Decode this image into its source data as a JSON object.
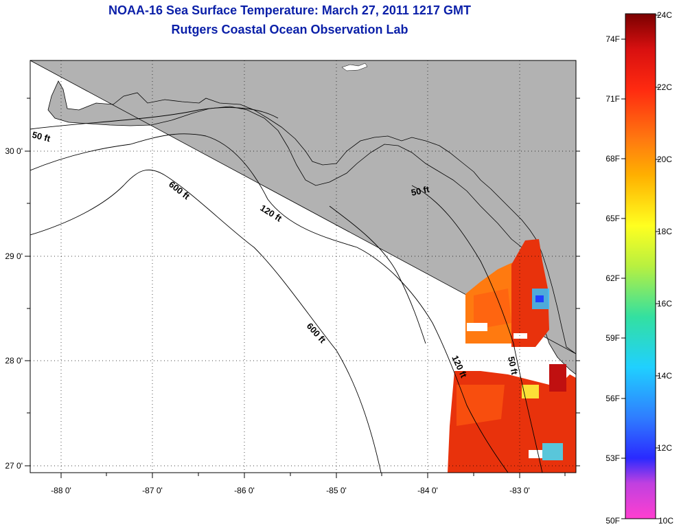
{
  "header": {
    "title_line1": "NOAA-16 Sea Surface Temperature:  March 27, 2011 1217 GMT",
    "title_line2": "Rutgers Coastal Ocean Observation Lab"
  },
  "axes": {
    "lon_labels": [
      "-88 0'",
      "-87 0'",
      "-86 0'",
      "-85 0'",
      "-84 0'",
      "-83 0'"
    ],
    "lat_labels": [
      "30 0'",
      "29 0'",
      "28 0'",
      "27 0'"
    ]
  },
  "contours": {
    "labels": [
      "50 ft",
      "600 ft",
      "120 ft",
      "50 ft",
      "600 ft",
      "120 ft",
      "50 ft"
    ]
  },
  "colorbar": {
    "celsius_labels": [
      "24C",
      "22C",
      "20C",
      "18C",
      "16C",
      "14C",
      "12C",
      "10C"
    ],
    "fahrenheit_labels": [
      "74F",
      "71F",
      "68F",
      "65F",
      "62F",
      "59F",
      "56F",
      "53F",
      "50F"
    ]
  },
  "colors": {
    "land": "#b2b2b2",
    "ocean": "#ffffff",
    "title": "#0a1fa8"
  }
}
